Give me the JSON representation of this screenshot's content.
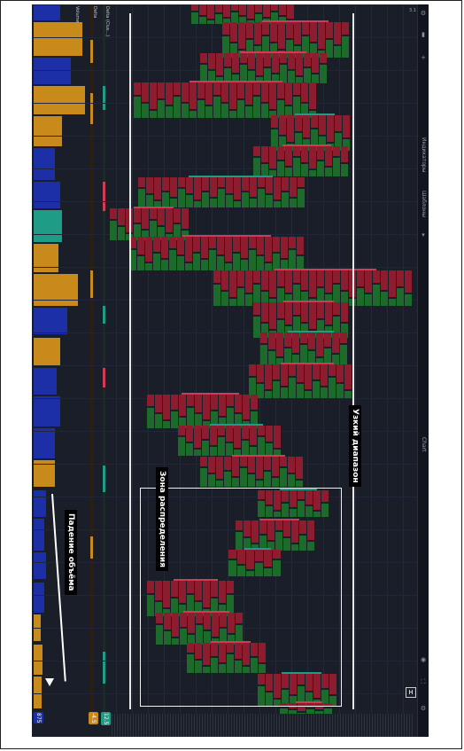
{
  "annotations": {
    "volume_drop": "Падение объёма",
    "distribution_zone": "Зона распределения",
    "narrow_range": "Узкий диапазон"
  },
  "indicators": {
    "volume_label": "Volume",
    "delta_label": "Delta",
    "cluster_label": "Delta (Clus...)"
  },
  "toolbar": {
    "items": [
      "Индикаторы",
      "Шаблоны",
      "Chart"
    ],
    "price_tag": "3.1"
  },
  "bottom_values": {
    "volume": "875",
    "delta": "-4.5",
    "cluster": "12.5"
  },
  "colors": {
    "background": "#1a1e29",
    "bid": "#8c1c2e",
    "ask": "#1c6b2a",
    "teal": "#1e9c86",
    "volume_orange": "#c98a1c",
    "volume_blue": "#1c2fa6"
  }
}
